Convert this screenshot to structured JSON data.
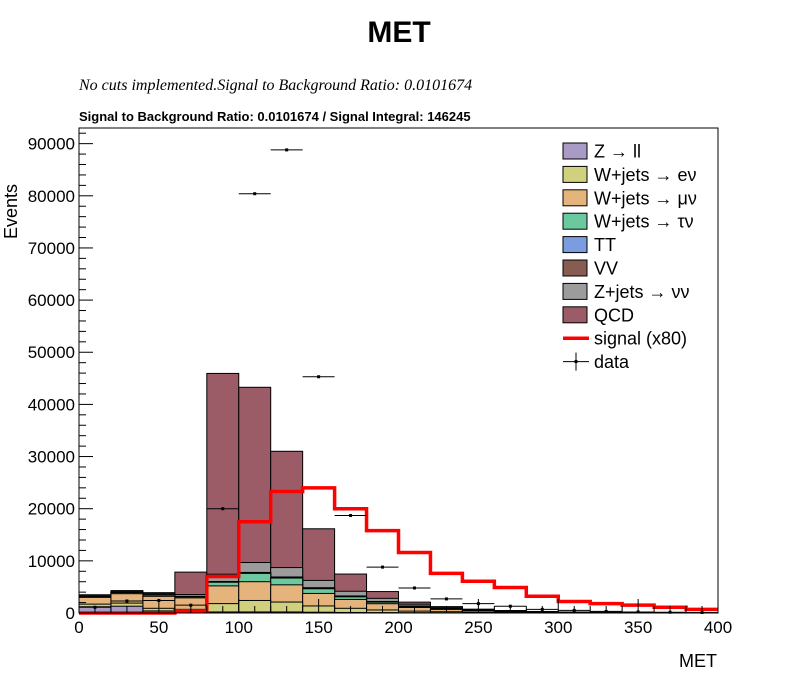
{
  "chart_data": {
    "type": "bar",
    "title": "MET",
    "subtitle": "No cuts implemented.Signal to Background Ratio: 0.0101674",
    "inner_title": "Signal to Background Ratio: 0.0101674 / Signal Integral: 146245",
    "xlabel": "MET",
    "ylabel": "Events",
    "xlim": [
      0,
      400
    ],
    "ylim": [
      0,
      93000
    ],
    "xticks": [
      0,
      50,
      100,
      150,
      200,
      250,
      300,
      350,
      400
    ],
    "yticks": [
      0,
      10000,
      20000,
      30000,
      40000,
      50000,
      60000,
      70000,
      80000,
      90000
    ],
    "bin_edges": [
      0,
      20,
      40,
      60,
      80,
      100,
      120,
      140,
      160,
      180,
      200,
      220,
      240,
      260,
      280,
      300,
      320,
      340,
      360,
      380,
      400
    ],
    "stack": [
      {
        "name": "Z → ll",
        "color": "#a99bc6",
        "values": [
          1200,
          1300,
          400,
          200,
          200,
          200,
          200,
          150,
          100,
          80,
          60,
          40,
          30,
          20,
          15,
          10,
          8,
          5,
          4,
          3
        ]
      },
      {
        "name": "W+jets → eν",
        "color": "#cfd17f",
        "values": [
          500,
          600,
          500,
          500,
          1600,
          2200,
          1900,
          1200,
          800,
          500,
          300,
          200,
          120,
          80,
          50,
          35,
          25,
          18,
          12,
          8
        ]
      },
      {
        "name": "W+jets → μν",
        "color": "#e5b47d",
        "values": [
          1300,
          1800,
          2300,
          2200,
          3400,
          3600,
          3300,
          2400,
          1700,
          1200,
          700,
          450,
          280,
          180,
          110,
          75,
          50,
          35,
          25,
          18
        ]
      },
      {
        "name": "W+jets → τν",
        "color": "#6cc89e",
        "values": [
          150,
          200,
          250,
          200,
          700,
          1600,
          1300,
          900,
          500,
          300,
          180,
          100,
          60,
          40,
          25,
          15,
          10,
          8,
          6,
          4
        ]
      },
      {
        "name": "TT",
        "color": "#7b9de0",
        "values": [
          30,
          40,
          40,
          50,
          80,
          100,
          120,
          110,
          90,
          70,
          50,
          35,
          25,
          18,
          12,
          8,
          6,
          4,
          3,
          2
        ]
      },
      {
        "name": "VV",
        "color": "#875d52",
        "values": [
          20,
          30,
          30,
          40,
          60,
          80,
          90,
          90,
          80,
          60,
          45,
          30,
          20,
          15,
          10,
          7,
          5,
          4,
          3,
          2
        ]
      },
      {
        "name": "Z+jets → νν",
        "color": "#9c9c9c",
        "values": [
          100,
          130,
          180,
          350,
          1400,
          1900,
          1800,
          1400,
          900,
          600,
          350,
          220,
          140,
          90,
          55,
          35,
          25,
          18,
          12,
          8
        ]
      },
      {
        "name": "QCD",
        "color": "#9c5c67",
        "values": [
          200,
          200,
          200,
          4300,
          38500,
          33600,
          22300,
          9900,
          3300,
          1300,
          400,
          150,
          60,
          30,
          15,
          8,
          5,
          3,
          2,
          1
        ]
      }
    ],
    "signal": {
      "name": "signal (x80)",
      "color": "#ff0000",
      "values": [
        0,
        0,
        0,
        400,
        7000,
        17500,
        23300,
        24000,
        20000,
        15800,
        11600,
        7600,
        6100,
        4900,
        3200,
        2200,
        1800,
        1500,
        1100,
        700
      ]
    },
    "data": {
      "name": "data",
      "color": "#000000",
      "values": [
        1100,
        2300,
        2400,
        1500,
        20000,
        80400,
        88800,
        45300,
        18700,
        8800,
        4800,
        2700,
        1800,
        1300,
        700,
        500,
        300,
        200,
        150,
        100
      ]
    },
    "legend_position": "top-right",
    "grid": false
  }
}
